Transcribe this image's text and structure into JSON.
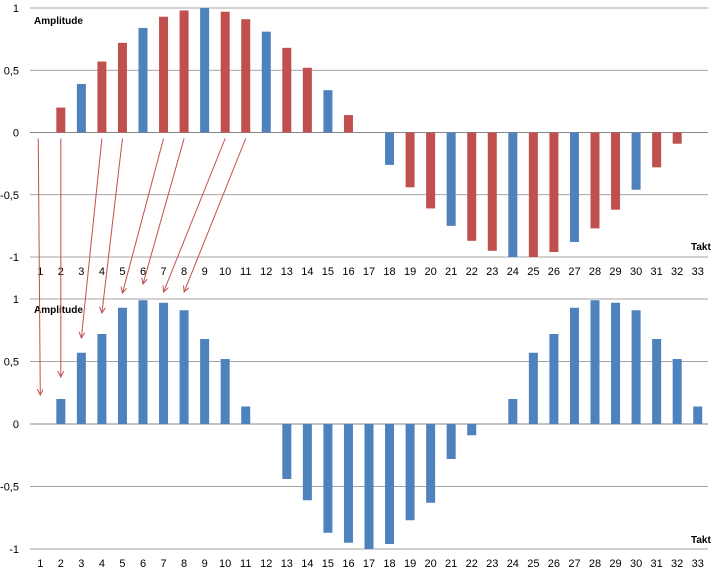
{
  "colors": {
    "blue": "#4f81bd",
    "red": "#c0504d",
    "grid": "#868686",
    "arrow": "#c0504d"
  },
  "chart_data": [
    {
      "type": "bar",
      "ylabel": "Amplitude",
      "xlabel": "Takt",
      "ylim": [
        -1,
        1
      ],
      "ytick_labels": [
        "-1",
        "-0,5",
        "0",
        "0,5",
        "1"
      ],
      "grid": true,
      "categories": [
        "1",
        "2",
        "3",
        "4",
        "5",
        "6",
        "7",
        "8",
        "9",
        "10",
        "11",
        "12",
        "13",
        "14",
        "15",
        "16",
        "17",
        "18",
        "19",
        "20",
        "21",
        "22",
        "23",
        "24",
        "25",
        "26",
        "27",
        "28",
        "29",
        "30",
        "31",
        "32",
        "33"
      ],
      "values": [
        0,
        0.2,
        0.39,
        0.57,
        0.72,
        0.84,
        0.93,
        0.98,
        1.0,
        0.97,
        0.91,
        0.81,
        0.68,
        0.52,
        0.34,
        0.14,
        0,
        -0.26,
        -0.44,
        -0.61,
        -0.75,
        -0.87,
        -0.95,
        -1.0,
        -1.0,
        -0.96,
        -0.88,
        -0.77,
        -0.62,
        -0.46,
        -0.28,
        -0.09,
        0
      ],
      "bar_colors": [
        "blue",
        "red",
        "blue",
        "red",
        "red",
        "blue",
        "red",
        "red",
        "blue",
        "red",
        "red",
        "blue",
        "red",
        "red",
        "blue",
        "red",
        "blue",
        "blue",
        "red",
        "red",
        "blue",
        "red",
        "red",
        "blue",
        "red",
        "red",
        "blue",
        "red",
        "red",
        "blue",
        "red",
        "red",
        "blue"
      ]
    },
    {
      "type": "bar",
      "ylabel": "Amplitude",
      "xlabel": "Takt",
      "ylim": [
        -1,
        1
      ],
      "ytick_labels": [
        "-1",
        "-0,5",
        "0",
        "0,5",
        "1"
      ],
      "grid": true,
      "categories": [
        "1",
        "2",
        "3",
        "4",
        "5",
        "6",
        "7",
        "8",
        "9",
        "10",
        "11",
        "12",
        "13",
        "14",
        "15",
        "16",
        "17",
        "18",
        "19",
        "20",
        "21",
        "22",
        "23",
        "24",
        "25",
        "26",
        "27",
        "28",
        "29",
        "30",
        "31",
        "32",
        "33"
      ],
      "values": [
        0,
        0.2,
        0.57,
        0.72,
        0.93,
        0.99,
        0.97,
        0.91,
        0.68,
        0.52,
        0.14,
        0,
        -0.44,
        -0.61,
        -0.87,
        -0.95,
        -1.0,
        -0.96,
        -0.77,
        -0.63,
        -0.28,
        -0.09,
        0,
        0.2,
        0.57,
        0.72,
        0.93,
        0.99,
        0.97,
        0.91,
        0.68,
        0.52,
        0.14
      ],
      "bar_colors": [
        "blue",
        "blue",
        "blue",
        "blue",
        "blue",
        "blue",
        "blue",
        "blue",
        "blue",
        "blue",
        "blue",
        "blue",
        "blue",
        "blue",
        "blue",
        "blue",
        "blue",
        "blue",
        "blue",
        "blue",
        "blue",
        "blue",
        "blue",
        "blue",
        "blue",
        "blue",
        "blue",
        "blue",
        "blue",
        "blue",
        "blue",
        "blue",
        "blue"
      ]
    }
  ],
  "arrows": [
    {
      "from_takt": 1,
      "to_takt": 1
    },
    {
      "from_takt": 2,
      "to_takt": 2
    },
    {
      "from_takt": 4,
      "to_takt": 3
    },
    {
      "from_takt": 5,
      "to_takt": 4
    },
    {
      "from_takt": 7,
      "to_takt": 5
    },
    {
      "from_takt": 8,
      "to_takt": 6
    },
    {
      "from_takt": 10,
      "to_takt": 7
    },
    {
      "from_takt": 11,
      "to_takt": 8
    }
  ]
}
